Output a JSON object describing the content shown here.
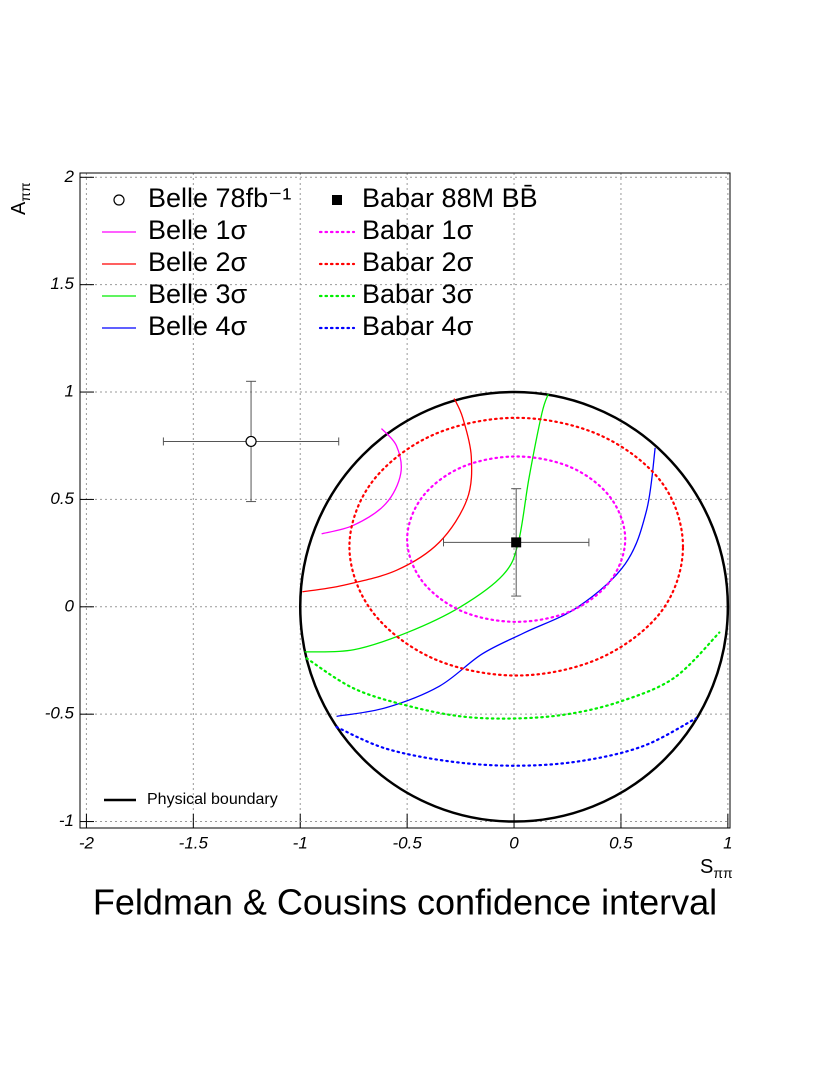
{
  "chart_data": {
    "type": "contour",
    "title": "Feldman & Cousins confidence interval",
    "xlabel": {
      "text": "S",
      "sub": "ππ"
    },
    "ylabel": {
      "text": "A",
      "sub": "ππ"
    },
    "xlim": [
      -2.03,
      1.01
    ],
    "ylim": [
      -1.03,
      2.02
    ],
    "xticks": [
      -2,
      -1.5,
      -1,
      -0.5,
      0,
      0.5,
      1
    ],
    "yticks": [
      -1,
      -0.5,
      0,
      0.5,
      1,
      1.5,
      2
    ],
    "grid": true,
    "points": [
      {
        "name": "Belle 78fb⁻¹",
        "marker": "open-circle",
        "x": -1.23,
        "y": 0.77,
        "xerr": 0.41,
        "yerr": 0.28
      },
      {
        "name": "Babar 88M BB̄",
        "marker": "filled-square",
        "x": 0.01,
        "y": 0.3,
        "xerr": 0.34,
        "yerr": 0.25
      }
    ],
    "series": [
      {
        "name": "Belle 1σ",
        "color": "#ff00ff",
        "style": "solid",
        "closed": false,
        "x": [
          -0.9,
          -0.75,
          -0.6,
          -0.53,
          -0.55,
          -0.62
        ],
        "y": [
          0.34,
          0.38,
          0.48,
          0.62,
          0.75,
          0.83
        ]
      },
      {
        "name": "Belle 2σ",
        "color": "#ff0000",
        "style": "solid",
        "closed": false,
        "x": [
          -0.99,
          -0.8,
          -0.55,
          -0.35,
          -0.22,
          -0.2,
          -0.24,
          -0.28
        ],
        "y": [
          0.07,
          0.1,
          0.17,
          0.3,
          0.5,
          0.7,
          0.88,
          0.97
        ]
      },
      {
        "name": "Belle 3σ",
        "color": "#00ee00",
        "style": "solid",
        "closed": false,
        "x": [
          -0.98,
          -0.75,
          -0.5,
          -0.25,
          -0.05,
          0.02,
          0.07,
          0.13,
          0.16
        ],
        "y": [
          -0.21,
          -0.2,
          -0.12,
          0.0,
          0.15,
          0.3,
          0.6,
          0.9,
          0.99
        ]
      },
      {
        "name": "Belle 4σ",
        "color": "#0000ff",
        "style": "solid",
        "closed": false,
        "x": [
          -0.83,
          -0.6,
          -0.35,
          -0.15,
          0.05,
          0.3,
          0.52,
          0.62,
          0.66
        ],
        "y": [
          -0.51,
          -0.47,
          -0.37,
          -0.22,
          -0.12,
          0.0,
          0.2,
          0.45,
          0.74
        ]
      },
      {
        "name": "Babar 1σ",
        "color": "#ff00ff",
        "style": "dotted",
        "closed": true,
        "x": [
          0.52,
          0.45,
          0.265,
          0.01,
          -0.245,
          -0.43,
          -0.5,
          -0.43,
          -0.245,
          0.01,
          0.265,
          0.45
        ],
        "y": [
          0.315,
          0.51,
          0.65,
          0.7,
          0.65,
          0.51,
          0.315,
          0.12,
          -0.02,
          -0.07,
          -0.02,
          0.12
        ]
      },
      {
        "name": "Babar 2σ",
        "color": "#ff0000",
        "style": "dotted",
        "closed": true,
        "x": [
          0.79,
          0.69,
          0.4,
          0.01,
          -0.38,
          -0.665,
          -0.77,
          -0.665,
          -0.38,
          0.01,
          0.4,
          0.69
        ],
        "y": [
          0.28,
          0.58,
          0.8,
          0.88,
          0.8,
          0.58,
          0.28,
          -0.02,
          -0.24,
          -0.32,
          -0.24,
          -0.02
        ]
      },
      {
        "name": "Babar 3σ",
        "color": "#00ee00",
        "style": "dotted",
        "closed": false,
        "x": [
          -0.97,
          -0.75,
          -0.5,
          -0.25,
          0.0,
          0.25,
          0.5,
          0.75,
          0.96
        ],
        "y": [
          -0.24,
          -0.38,
          -0.46,
          -0.51,
          -0.52,
          -0.5,
          -0.44,
          -0.33,
          -0.12
        ]
      },
      {
        "name": "Babar 4σ",
        "color": "#0000ff",
        "style": "dotted",
        "closed": false,
        "x": [
          -0.83,
          -0.6,
          -0.3,
          0.0,
          0.3,
          0.6,
          0.85
        ],
        "y": [
          -0.56,
          -0.66,
          -0.72,
          -0.74,
          -0.72,
          -0.65,
          -0.52
        ]
      }
    ],
    "boundary": {
      "name": "Physical boundary",
      "color": "#000000",
      "center": [
        0,
        0
      ],
      "radius": 1
    }
  }
}
